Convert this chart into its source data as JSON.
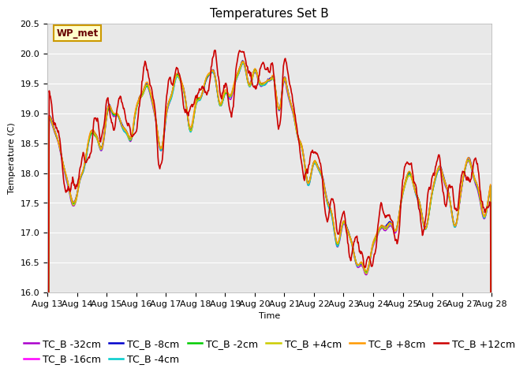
{
  "title": "Temperatures Set B",
  "xlabel": "Time",
  "ylabel": "Temperature (C)",
  "ylim": [
    16.0,
    20.5
  ],
  "x_tick_labels": [
    "Aug 13",
    "Aug 14",
    "Aug 15",
    "Aug 16",
    "Aug 17",
    "Aug 18",
    "Aug 19",
    "Aug 20",
    "Aug 21",
    "Aug 22",
    "Aug 23",
    "Aug 24",
    "Aug 25",
    "Aug 26",
    "Aug 27",
    "Aug 28"
  ],
  "series": [
    {
      "label": "TC_B -32cm",
      "color": "#aa00cc",
      "lw": 1.0
    },
    {
      "label": "TC_B -16cm",
      "color": "#ff00ff",
      "lw": 1.0
    },
    {
      "label": "TC_B -8cm",
      "color": "#0000cc",
      "lw": 1.0
    },
    {
      "label": "TC_B -4cm",
      "color": "#00cccc",
      "lw": 1.0
    },
    {
      "label": "TC_B -2cm",
      "color": "#00cc00",
      "lw": 1.0
    },
    {
      "label": "TC_B +4cm",
      "color": "#cccc00",
      "lw": 1.0
    },
    {
      "label": "TC_B +8cm",
      "color": "#ff9900",
      "lw": 1.0
    },
    {
      "label": "TC_B +12cm",
      "color": "#cc0000",
      "lw": 1.2
    }
  ],
  "wp_met_box_color": "#ffffcc",
  "wp_met_border_color": "#cc9900",
  "wp_met_text_color": "#660000",
  "bg_color": "#ffffff",
  "plot_bg_color": "#e8e8e8",
  "grid_color": "#ffffff",
  "legend_fontsize": 9,
  "title_fontsize": 11,
  "axis_fontsize": 8
}
